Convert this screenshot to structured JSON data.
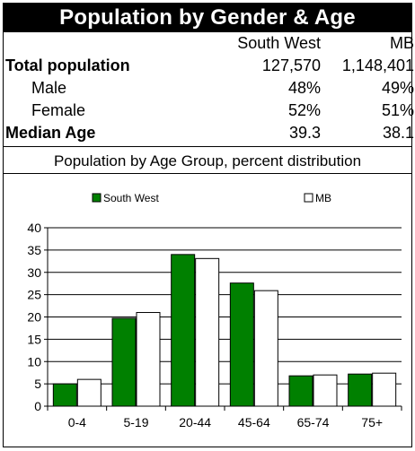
{
  "header": {
    "title": "Population by Gender & Age"
  },
  "stats": {
    "columns": [
      "South West",
      "MB"
    ],
    "rows": [
      {
        "label": "Total population",
        "values": [
          "127,570",
          "1,148,401"
        ],
        "bold": true
      },
      {
        "label": "Male",
        "values": [
          "48%",
          "49%"
        ],
        "bold": false
      },
      {
        "label": "Female",
        "values": [
          "52%",
          "51%"
        ],
        "bold": false
      },
      {
        "label": "Median Age",
        "values": [
          "39.3",
          "38.1"
        ],
        "bold": true
      }
    ]
  },
  "chart_data": {
    "type": "bar",
    "title": "Population by Age Group, percent distribution",
    "categories": [
      "0-4",
      "5-19",
      "20-44",
      "45-64",
      "65-74",
      "75+"
    ],
    "series": [
      {
        "name": "South West",
        "values": [
          5.0,
          19.7,
          34.0,
          27.6,
          6.8,
          7.2
        ],
        "color": "#008000"
      },
      {
        "name": "MB",
        "values": [
          6.0,
          21.0,
          33.1,
          25.9,
          7.0,
          7.4
        ],
        "color": "#ffffff"
      }
    ],
    "ylim": [
      0,
      40
    ],
    "yticks": [
      0,
      5,
      10,
      15,
      20,
      25,
      30,
      35,
      40
    ],
    "grid": true,
    "legend": "top"
  }
}
